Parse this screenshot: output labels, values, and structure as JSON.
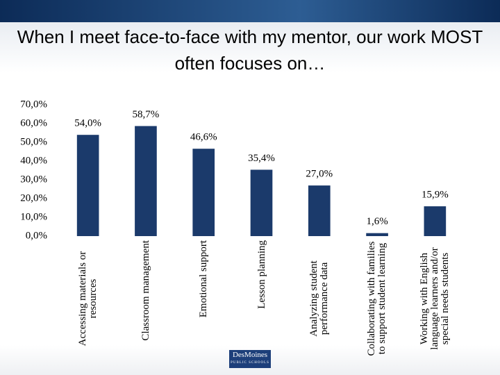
{
  "chart_data": {
    "type": "bar",
    "title": "When I meet face-to-face with my mentor, our work MOST often focuses on…",
    "categories": [
      "Accessing materials or resources",
      "Classroom management",
      "Emotional support",
      "Lesson planning",
      "Analyzing student performance data",
      "Collaborating with families to support student learning",
      "Working with English language learners and/or special needs students"
    ],
    "values": [
      54.0,
      58.7,
      46.6,
      35.4,
      27.0,
      1.6,
      15.9
    ],
    "value_labels": [
      "54,0%",
      "58,7%",
      "46,6%",
      "35,4%",
      "27,0%",
      "1,6%",
      "15,9%"
    ],
    "color": "#1b3a6b",
    "ylim": [
      0,
      70
    ],
    "yticks": [
      {
        "value": 0,
        "label": "0,0%"
      },
      {
        "value": 10,
        "label": "10,0%"
      },
      {
        "value": 20,
        "label": "20,0%"
      },
      {
        "value": 30,
        "label": "30,0%"
      },
      {
        "value": 40,
        "label": "40,0%"
      },
      {
        "value": 50,
        "label": "50,0%"
      },
      {
        "value": 60,
        "label": "60,0%"
      },
      {
        "value": 70,
        "label": "70,0%"
      }
    ],
    "grid": false
  },
  "logo": {
    "name": "DesMoines",
    "subtitle": "PUBLIC SCHOOLS"
  }
}
